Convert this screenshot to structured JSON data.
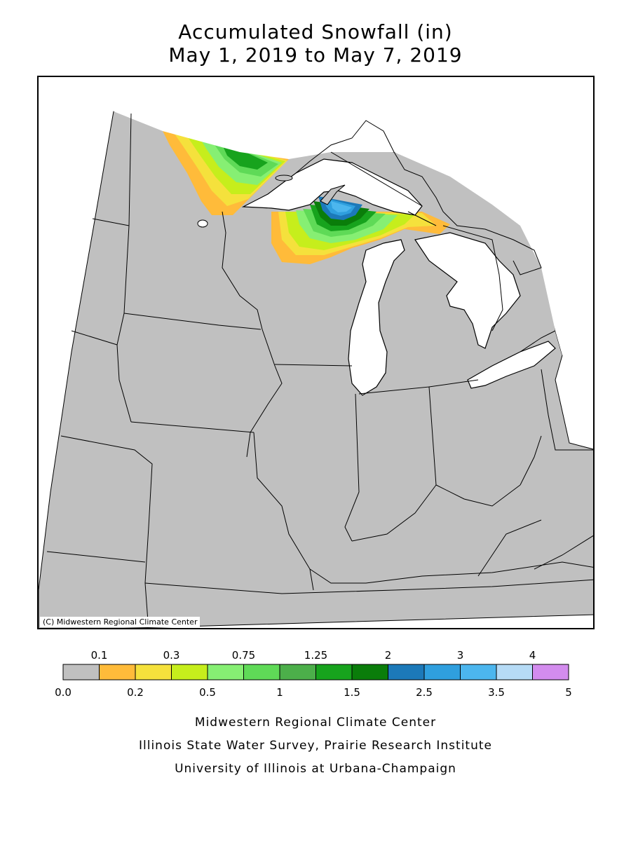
{
  "map": {
    "title_line1": "Accumulated Snowfall (in)",
    "title_line2": "May 1, 2019 to May 7, 2019",
    "copyright": "(C) Midwestern Regional Climate Center",
    "land_color": "#c0c0c0",
    "water_color": "#ffffff",
    "region": "Upper Midwest US (MN, WI, MI, IA, IL, IN, OH, MO, KY)"
  },
  "legend": {
    "top_labels": [
      "0.1",
      "0.3",
      "0.75",
      "1.25",
      "2",
      "3",
      "4"
    ],
    "bottom_labels": [
      "0.0",
      "0.2",
      "0.5",
      "1",
      "1.5",
      "2.5",
      "3.5",
      "5"
    ],
    "colors": [
      "#c0c0c0",
      "#ffbb3a",
      "#f5e13c",
      "#c6ee1c",
      "#86ef73",
      "#5fda57",
      "#4caf4a",
      "#17a31d",
      "#0a7d0a",
      "#1c79b9",
      "#2f9fde",
      "#4cb6ee",
      "#b6dbf6",
      "#d38cee"
    ]
  },
  "credits": {
    "line1": "Midwestern Regional Climate Center",
    "line2": "Illinois State Water Survey, Prairie Research Institute",
    "line3": "University of Illinois at Urbana-Champaign"
  }
}
